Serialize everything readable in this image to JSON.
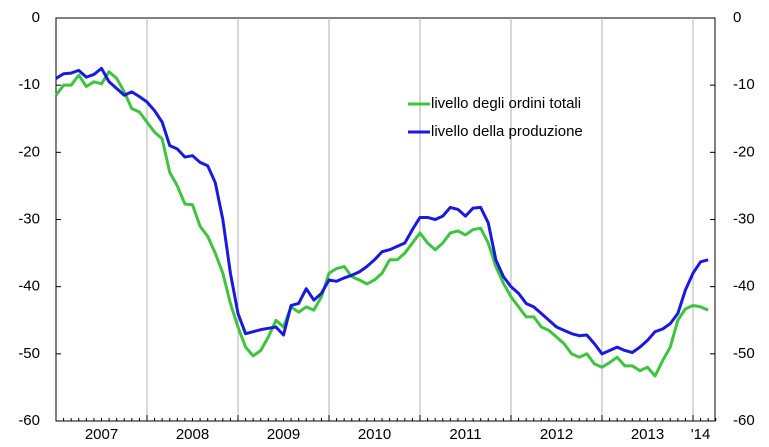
{
  "chart_data": {
    "type": "line",
    "categories": [
      null,
      null,
      null,
      null,
      null,
      null,
      "2007",
      null,
      null,
      null,
      null,
      null,
      null,
      null,
      null,
      null,
      null,
      null,
      "2008",
      null,
      null,
      null,
      null,
      null,
      null,
      null,
      null,
      null,
      null,
      null,
      "2009",
      null,
      null,
      null,
      null,
      null,
      null,
      null,
      null,
      null,
      null,
      null,
      "2010",
      null,
      null,
      null,
      null,
      null,
      null,
      null,
      null,
      null,
      null,
      null,
      "2011",
      null,
      null,
      null,
      null,
      null,
      null,
      null,
      null,
      null,
      null,
      null,
      "2012",
      null,
      null,
      null,
      null,
      null,
      null,
      null,
      null,
      null,
      null,
      null,
      "2013",
      null,
      null,
      null,
      null,
      null,
      null,
      "'14",
      null
    ],
    "series": [
      {
        "name": "livello degli ordini totali",
        "color": "#3ec43e",
        "values": [
          -11.5,
          -10,
          -10,
          -8.5,
          -10.2,
          -9.5,
          -9.8,
          -8,
          -9,
          -11,
          -13.5,
          -14,
          -15.5,
          -17,
          -18,
          -23,
          -25,
          -27.7,
          -27.8,
          -31,
          -32.5,
          -35,
          -38,
          -42.5,
          -46,
          -49,
          -50.3,
          -49.5,
          -47.5,
          -45,
          -46,
          -43,
          -43.8,
          -43,
          -43.5,
          -41.5,
          -38,
          -37.3,
          -37,
          -38.5,
          -39,
          -39.6,
          -39,
          -38,
          -36,
          -36,
          -35,
          -33.5,
          -32,
          -33.5,
          -34.5,
          -33.5,
          -32,
          -31.7,
          -32.3,
          -31.5,
          -31.3,
          -33.5,
          -37,
          -39.5,
          -41.5,
          -43,
          -44.5,
          -44.5,
          -46,
          -46.5,
          -47.5,
          -48.5,
          -50,
          -50.5,
          -50,
          -51.5,
          -52,
          -51.3,
          -50.5,
          -51.8,
          -51.8,
          -52.5,
          -52,
          -53.3,
          -51,
          -49,
          -45,
          -43.3,
          -42.8,
          -43,
          -43.5
        ]
      },
      {
        "name": "livello della produzione",
        "color": "#1a1adf",
        "values": [
          -9,
          -8.3,
          -8.2,
          -7.8,
          -8.8,
          -8.4,
          -7.5,
          -9.5,
          -10.5,
          -11.5,
          -11,
          -11.7,
          -12.5,
          -13.8,
          -15.5,
          -19,
          -19.5,
          -20.7,
          -20.5,
          -21.5,
          -22,
          -24.5,
          -30,
          -38,
          -44,
          -47,
          -46.7,
          -46.4,
          -46.2,
          -46,
          -47.2,
          -42.8,
          -42.5,
          -40.3,
          -42,
          -41,
          -39,
          -39.2,
          -38.7,
          -38.3,
          -37.8,
          -37,
          -36,
          -34.8,
          -34.5,
          -34,
          -33.5,
          -31.5,
          -29.7,
          -29.7,
          -30,
          -29.5,
          -28.2,
          -28.5,
          -29.5,
          -28.3,
          -28.2,
          -30.5,
          -36,
          -38.5,
          -40,
          -41,
          -42.5,
          -43,
          -44,
          -45,
          -46,
          -46.5,
          -47,
          -47.3,
          -47.2,
          -48.5,
          -50,
          -49.5,
          -49,
          -49.5,
          -49.8,
          -49,
          -48,
          -46.7,
          -46.3,
          -45.5,
          -44,
          -40.5,
          -38,
          -36.3,
          -36
        ]
      }
    ],
    "ylim": [
      -60,
      0
    ],
    "yticks": [
      0,
      -10,
      -20,
      -30,
      -40,
      -50,
      -60
    ],
    "y2lim": [
      -60,
      0
    ],
    "y2ticks": [
      0,
      -10,
      -20,
      -30,
      -40,
      -50,
      -60
    ],
    "legend": "upper right"
  }
}
